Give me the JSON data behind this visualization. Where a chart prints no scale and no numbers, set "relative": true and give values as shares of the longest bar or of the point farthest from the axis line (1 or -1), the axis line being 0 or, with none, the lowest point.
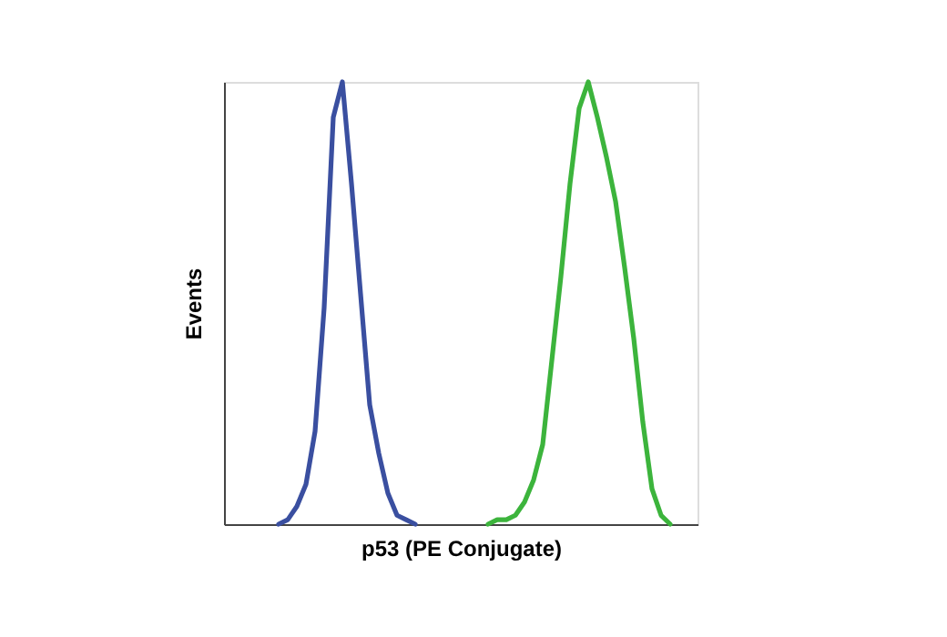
{
  "chart_data": {
    "type": "line",
    "relative": true,
    "xlabel": "p53 (PE Conjugate)",
    "ylabel": "Events",
    "tick_labels": false,
    "legend": false,
    "categories": [
      null,
      null,
      null,
      null,
      null,
      null,
      null,
      null,
      null,
      null,
      null,
      null,
      null,
      null,
      null,
      null,
      null,
      null,
      null,
      null,
      null,
      null,
      null,
      null,
      null,
      null,
      null,
      null,
      null,
      null,
      null,
      null,
      null,
      null,
      null,
      null,
      null,
      null,
      null,
      null,
      null,
      null,
      null,
      null,
      null,
      null,
      null,
      null,
      null,
      null,
      null,
      null,
      null
    ],
    "series": [
      {
        "color": "#3a4fa0",
        "values": [
          null,
          null,
          null,
          null,
          null,
          null,
          0,
          0.01,
          0.04,
          0.09,
          0.21,
          0.49,
          0.92,
          1,
          0.77,
          0.52,
          0.27,
          0.16,
          0.07,
          0.02,
          0.01,
          0,
          null,
          null,
          null,
          null,
          null,
          null,
          null,
          null,
          null,
          null,
          null,
          null,
          null,
          null,
          null,
          null,
          null,
          null,
          null,
          null,
          null,
          null,
          null,
          null,
          null,
          null,
          null,
          null,
          null,
          null,
          null
        ]
      },
      {
        "color": "#3cb43c",
        "values": [
          null,
          null,
          null,
          null,
          null,
          null,
          null,
          null,
          null,
          null,
          null,
          null,
          null,
          null,
          null,
          null,
          null,
          null,
          null,
          null,
          null,
          null,
          null,
          null,
          null,
          null,
          null,
          null,
          null,
          0,
          0.01,
          0.01,
          0.02,
          0.05,
          0.1,
          0.18,
          0.37,
          0.56,
          0.77,
          0.94,
          1,
          0.92,
          0.83,
          0.73,
          0.58,
          0.42,
          0.23,
          0.08,
          0.02,
          0,
          null,
          null,
          null
        ]
      }
    ]
  }
}
